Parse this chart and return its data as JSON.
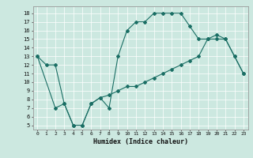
{
  "xlabel": "Humidex (Indice chaleur)",
  "bg_color": "#cce8e0",
  "line_color": "#1a6e64",
  "xlim": [
    -0.5,
    23.5
  ],
  "ylim": [
    4.5,
    18.8
  ],
  "xticks": [
    0,
    1,
    2,
    3,
    4,
    5,
    6,
    7,
    8,
    9,
    10,
    11,
    12,
    13,
    14,
    15,
    16,
    17,
    18,
    19,
    20,
    21,
    22,
    23
  ],
  "yticks": [
    5,
    6,
    7,
    8,
    9,
    10,
    11,
    12,
    13,
    14,
    15,
    16,
    17,
    18
  ],
  "line1_x": [
    0,
    1,
    2,
    3,
    4,
    5,
    6,
    7,
    8,
    9,
    10,
    11,
    12,
    13,
    14,
    15,
    16,
    17,
    18,
    19,
    20,
    21,
    22,
    23
  ],
  "line1_y": [
    13,
    12,
    12,
    7.5,
    5,
    5,
    7.5,
    8.2,
    7.0,
    13,
    16,
    17,
    17,
    18,
    18,
    18,
    18,
    16.5,
    15,
    15,
    15.5,
    15,
    13,
    11
  ],
  "line2_x": [
    0,
    2,
    3,
    4,
    5,
    6,
    7,
    8,
    9,
    10,
    11,
    12,
    13,
    14,
    15,
    16,
    17,
    18,
    19,
    20,
    21,
    22,
    23
  ],
  "line2_y": [
    13,
    7,
    7.5,
    5,
    5,
    7.5,
    8.2,
    8.5,
    9,
    9.5,
    9.5,
    10,
    10.5,
    11,
    11.5,
    12,
    12.5,
    13,
    15,
    15,
    15,
    13,
    11
  ]
}
